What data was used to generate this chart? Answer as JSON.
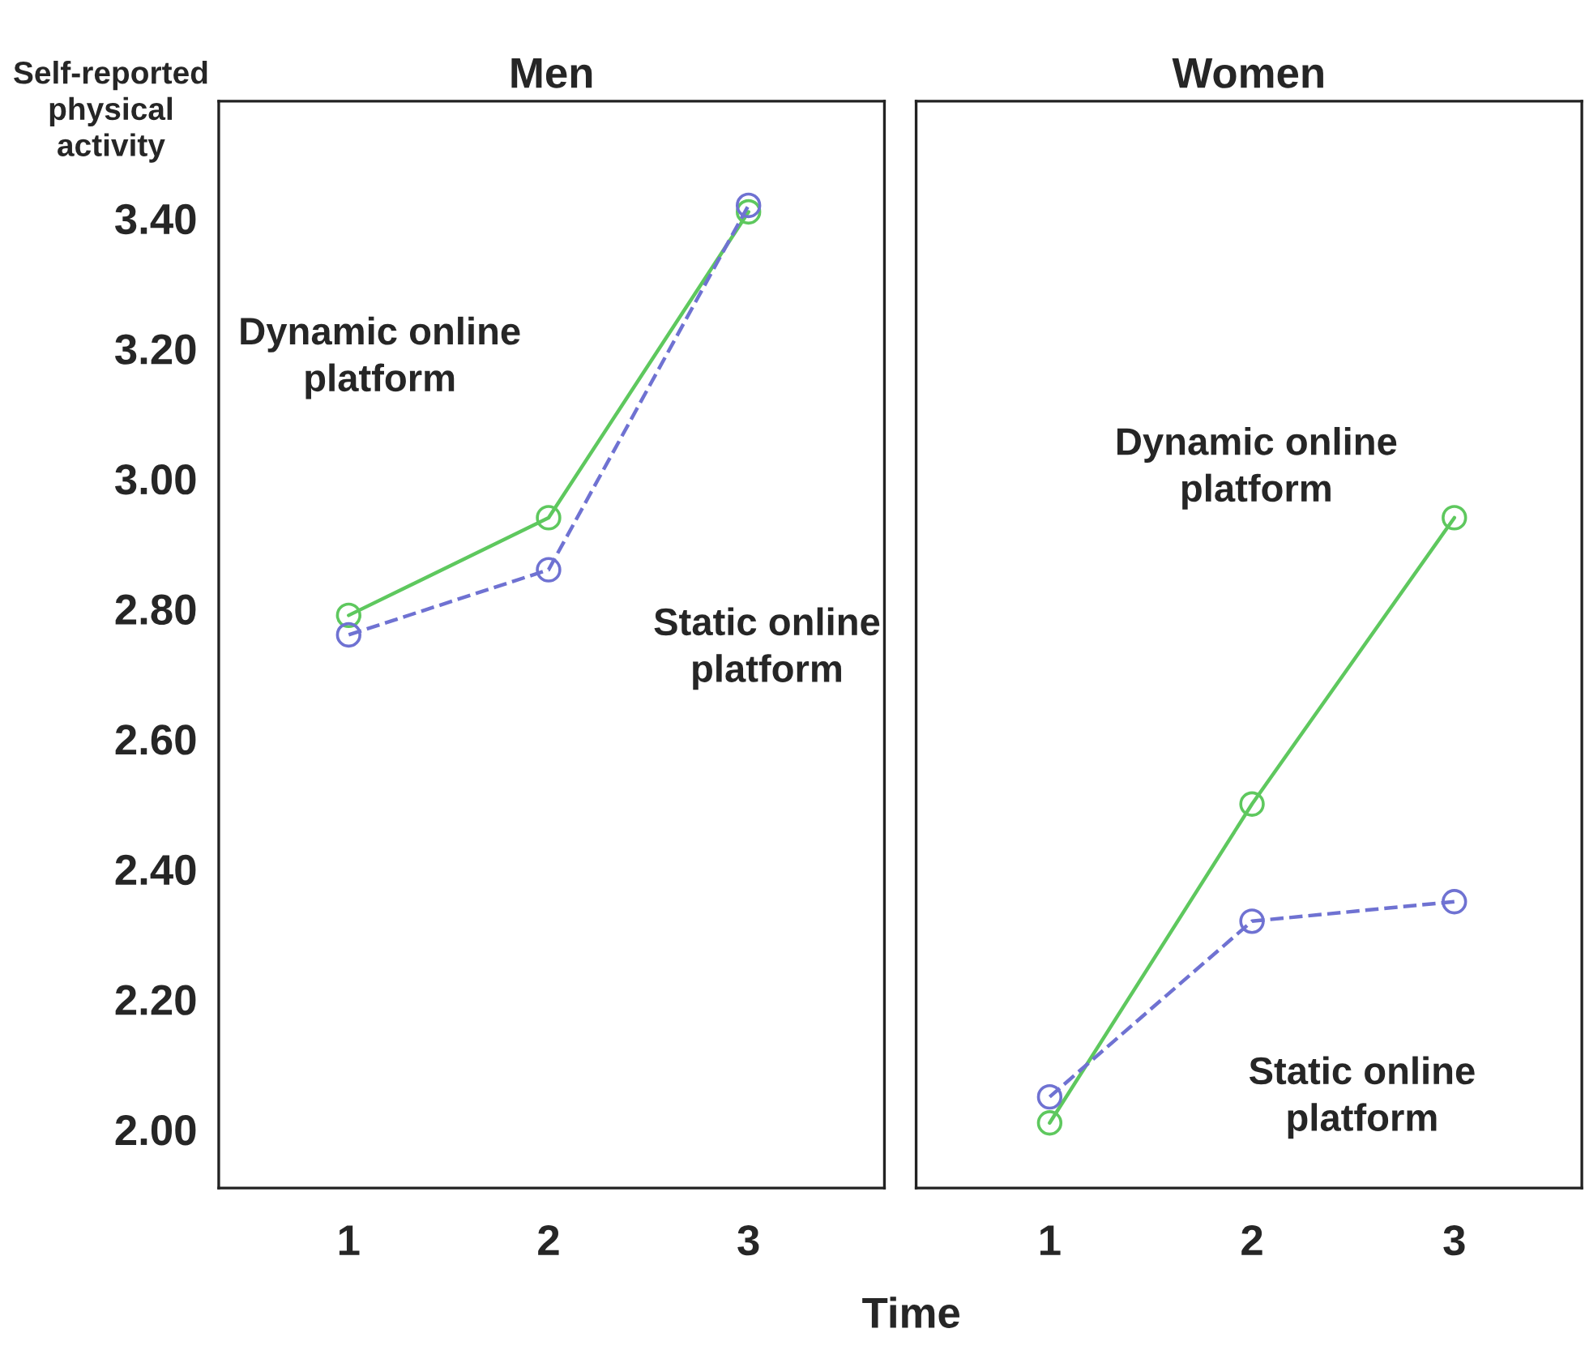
{
  "chart_data": [
    {
      "type": "line",
      "title": "Men",
      "ylabel": "Self-reported physical activity",
      "xlabel": "Time",
      "x": [
        1,
        2,
        3
      ],
      "xlim": [
        0.35,
        3.68
      ],
      "xticks": [
        1,
        2,
        3
      ],
      "ylim": [
        1.91,
        3.58
      ],
      "yticks": [
        {
          "value": 2.0,
          "label": "2.00"
        },
        {
          "value": 2.2,
          "label": "2.20"
        },
        {
          "value": 2.4,
          "label": "2.40"
        },
        {
          "value": 2.6,
          "label": "2.60"
        },
        {
          "value": 2.8,
          "label": "2.80"
        },
        {
          "value": 3.0,
          "label": "3.00"
        },
        {
          "value": 3.2,
          "label": "3.20"
        },
        {
          "value": 3.4,
          "label": "3.40"
        }
      ],
      "marker": "circle",
      "series": [
        {
          "name": "Dynamic online platform",
          "color": "#5ec85e",
          "line_style": "solid",
          "values": [
            2.79,
            2.94,
            3.41
          ]
        },
        {
          "name": "Static online platform",
          "color": "#6f72d2",
          "line_style": "dashed",
          "values": [
            2.76,
            2.86,
            3.42
          ]
        }
      ]
    },
    {
      "type": "line",
      "title": "Women",
      "tick_labels": "x",
      "x": [
        1,
        2,
        3
      ],
      "xlim": [
        0.34,
        3.63
      ],
      "xticks": [
        1,
        2,
        3
      ],
      "ylim": [
        1.91,
        3.58
      ],
      "marker": "circle",
      "series": [
        {
          "name": "Dynamic online platform",
          "color": "#5ec85e",
          "line_style": "solid",
          "values": [
            2.01,
            2.5,
            2.94
          ]
        },
        {
          "name": "Static online platform",
          "color": "#6f72d2",
          "line_style": "dashed",
          "values": [
            2.05,
            2.32,
            2.35
          ]
        }
      ]
    }
  ]
}
